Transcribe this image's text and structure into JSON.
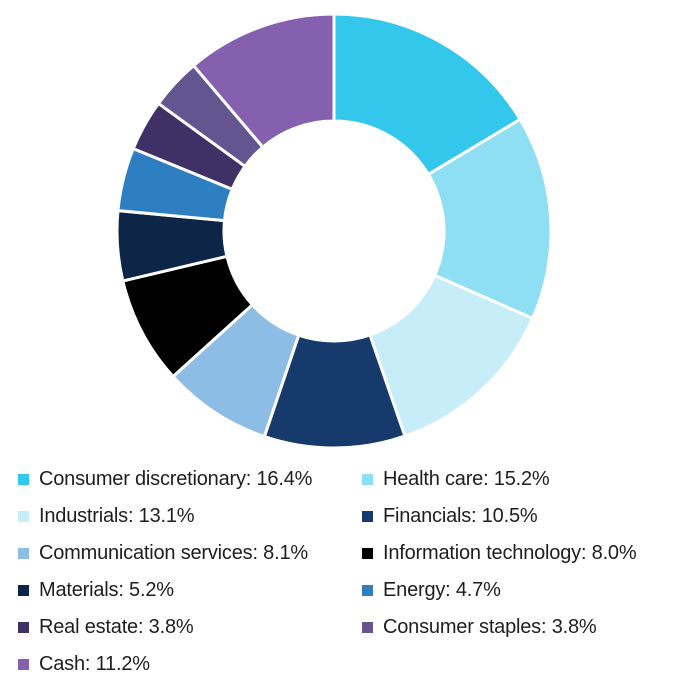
{
  "chart_data": {
    "type": "pie",
    "donut": true,
    "slices": [
      {
        "label": "Consumer discretionary",
        "value": 16.4,
        "display": "Consumer discretionary: 16.4%",
        "color": "#33C7EC"
      },
      {
        "label": "Health care",
        "value": 15.2,
        "display": "Health care: 15.2%",
        "color": "#8EDEF4"
      },
      {
        "label": "Industrials",
        "value": 13.1,
        "display": "Industrials: 13.1%",
        "color": "#C6EDF8"
      },
      {
        "label": "Financials",
        "value": 10.5,
        "display": "Financials: 10.5%",
        "color": "#173A6C"
      },
      {
        "label": "Communication services",
        "value": 8.1,
        "display": "Communication services: 8.1%",
        "color": "#8DBCE5"
      },
      {
        "label": "Information technology",
        "value": 8.0,
        "display": "Information technology: 8.0%",
        "color": "#000000"
      },
      {
        "label": "Materials",
        "value": 5.2,
        "display": "Materials: 5.2%",
        "color": "#0D2546"
      },
      {
        "label": "Energy",
        "value": 4.7,
        "display": "Energy: 4.7%",
        "color": "#2E7FC1"
      },
      {
        "label": "Real estate",
        "value": 3.8,
        "display": "Real estate: 3.8%",
        "color": "#3F3166"
      },
      {
        "label": "Consumer staples",
        "value": 3.8,
        "display": "Consumer staples: 3.8%",
        "color": "#63558F"
      },
      {
        "label": "Cash",
        "value": 11.2,
        "display": "Cash: 11.2%",
        "color": "#8460AF"
      }
    ],
    "legend_position": "bottom",
    "legend_columns": 2
  }
}
